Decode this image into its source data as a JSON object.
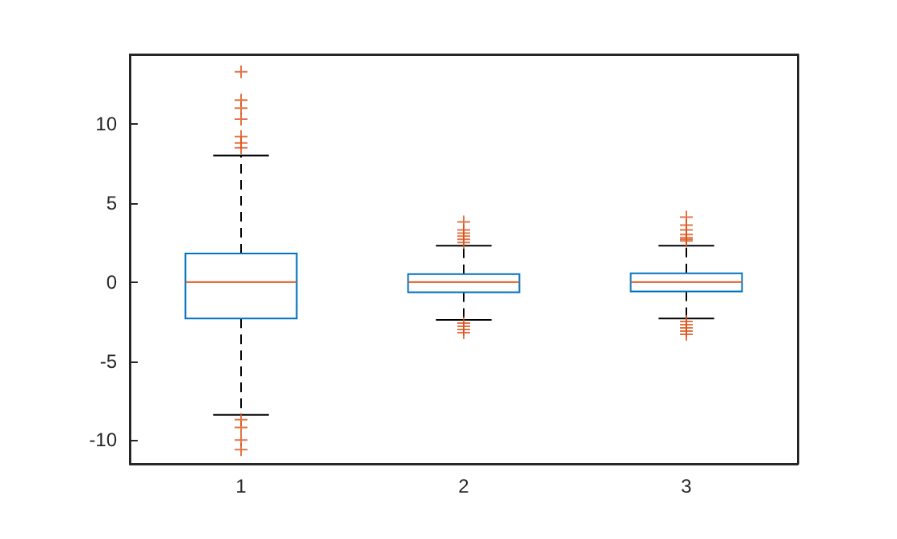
{
  "chart_data": {
    "type": "box",
    "categories": [
      "1",
      "2",
      "3"
    ],
    "ylim": [
      -11.5,
      14.4
    ],
    "yticks": [
      -10,
      -5,
      0,
      5,
      10
    ],
    "grid": false,
    "line_style": "dashed",
    "marker": "cross",
    "series": [
      {
        "color": "#0072bd",
        "boxes": [
          {
            "low": -8.4,
            "q1": -2.3,
            "median": 0,
            "q3": 1.8,
            "high": 8.0,
            "outliers": [
              13.3,
              11.5,
              11.0,
              10.3,
              9.2,
              8.8,
              8.5,
              -8.7,
              -9.2,
              -10.0,
              -10.6
            ]
          },
          {
            "low": -2.4,
            "q1": -0.65,
            "median": 0,
            "q3": 0.5,
            "high": 2.3,
            "outliers": [
              2.5,
              2.7,
              2.9,
              3.1,
              3.3,
              3.8,
              -2.6,
              -2.8,
              -3.0,
              -3.2
            ]
          },
          {
            "low": -2.3,
            "q1": -0.6,
            "median": 0,
            "q3": 0.55,
            "high": 2.3,
            "outliers": [
              2.6,
              2.7,
              2.8,
              3.0,
              3.3,
              3.6,
              4.1,
              -2.5,
              -2.7,
              -2.9,
              -3.1,
              -3.3
            ]
          }
        ]
      }
    ]
  }
}
